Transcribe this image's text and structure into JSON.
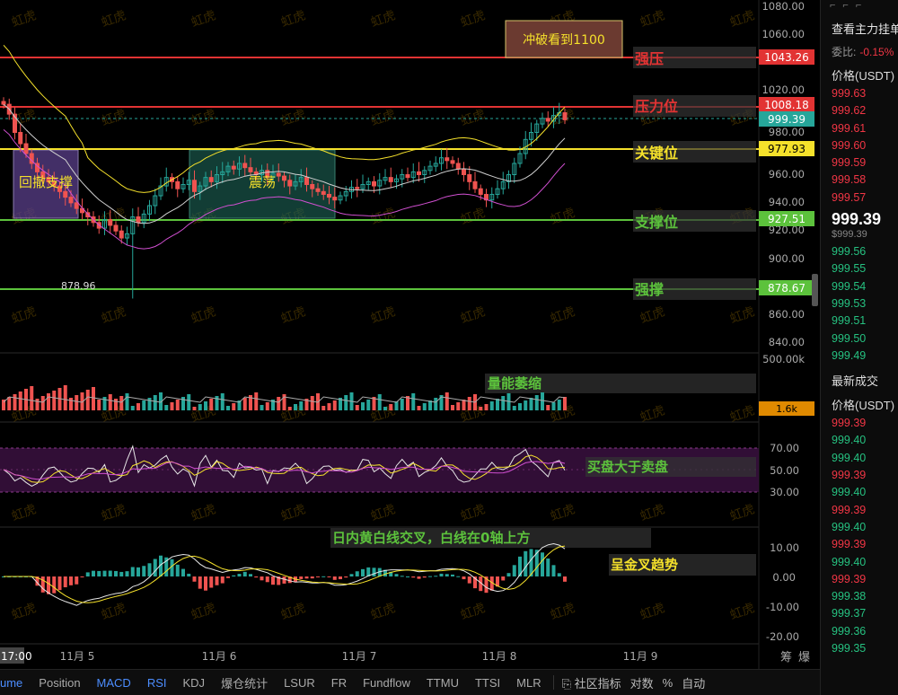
{
  "watermark": "虹虎",
  "price_axis": {
    "ticks": [
      "1080.00",
      "1060.00",
      "1020.00",
      "980.00",
      "960.00",
      "940.00",
      "920.00",
      "900.00",
      "860.00",
      "840.00"
    ],
    "levels": [
      {
        "key": "strong_resist",
        "label": "1043.26",
        "price": 1043.26,
        "color": "#e23333",
        "text_color": "#ffffff"
      },
      {
        "key": "resist",
        "label": "1008.18",
        "price": 1008.18,
        "color": "#e23333",
        "text_color": "#ffffff"
      },
      {
        "key": "current",
        "label": "999.39",
        "price": 999.39,
        "color": "#26a69a",
        "text_color": "#ffffff"
      },
      {
        "key": "key",
        "label": "977.93",
        "price": 977.93,
        "color": "#f5e12b",
        "text_color": "#000000"
      },
      {
        "key": "support",
        "label": "927.51",
        "price": 927.51,
        "color": "#5cc23c",
        "text_color": "#ffffff"
      },
      {
        "key": "strong_support",
        "label": "878.67",
        "price": 878.67,
        "color": "#5cc23c",
        "text_color": "#ffffff"
      }
    ]
  },
  "annotations": {
    "breakout": "冲破看到1100",
    "strong_resist": "强压",
    "resist": "压力位",
    "key": "关键位",
    "support": "支撑位",
    "strong_support": "强撑",
    "pullback": "回撤支撑",
    "range": "震荡",
    "low_label": "878.96",
    "volume_shrink": "量能萎缩",
    "buy_gt_sell": "买盘大于卖盘",
    "macd_cross": "日内黄白线交叉，白线在0轴上方",
    "golden_cross": "呈金叉趋势"
  },
  "volume_axis": {
    "top": "500.00k",
    "value": "1.6k"
  },
  "rsi_axis": {
    "ticks": [
      "70.00",
      "50.00",
      "30.00"
    ]
  },
  "macd_axis": {
    "ticks": [
      "10.00",
      "0.00",
      "-10.00",
      "-20.00"
    ]
  },
  "time_axis": {
    "current": "17:00",
    "labels": [
      "11月 5",
      "11月 6",
      "11月 7",
      "11月 8",
      "11月 9"
    ]
  },
  "tools_right": {
    "a": "筹",
    "b": "爆"
  },
  "tabs": [
    "ume",
    "Position",
    "MACD",
    "RSI",
    "KDJ",
    "爆仓统计",
    "LSUR",
    "FR",
    "Fundflow",
    "TTMU",
    "TTSI",
    "MLR"
  ],
  "active_tabs": [
    "MACD",
    "RSI"
  ],
  "bottom_tools": {
    "indicator": "社区指标",
    "log": "对数",
    "pct": "%",
    "auto": "自动"
  },
  "orderbook": {
    "title": "查看主力挂单",
    "ratio_label": "委比:",
    "ratio_value": "-0.15%",
    "price_header": "价格(USDT)",
    "asks": [
      "999.63",
      "999.62",
      "999.61",
      "999.60",
      "999.59",
      "999.58",
      "999.57"
    ],
    "last_price": "999.39",
    "last_sub": "$999.39",
    "bids": [
      "999.56",
      "999.55",
      "999.54",
      "999.53",
      "999.51",
      "999.50",
      "999.49"
    ],
    "trades_title": "最新成交",
    "trades_header": "价格(USDT)",
    "trades": [
      {
        "p": "999.39",
        "side": "sell"
      },
      {
        "p": "999.40",
        "side": "buy"
      },
      {
        "p": "999.40",
        "side": "buy"
      },
      {
        "p": "999.39",
        "side": "sell"
      },
      {
        "p": "999.40",
        "side": "buy"
      },
      {
        "p": "999.39",
        "side": "sell"
      },
      {
        "p": "999.40",
        "side": "buy"
      },
      {
        "p": "999.39",
        "side": "sell"
      },
      {
        "p": "999.40",
        "side": "buy"
      },
      {
        "p": "999.39",
        "side": "sell"
      },
      {
        "p": "999.38",
        "side": "buy"
      },
      {
        "p": "999.37",
        "side": "buy"
      },
      {
        "p": "999.36",
        "side": "buy"
      },
      {
        "p": "999.35",
        "side": "buy"
      }
    ]
  },
  "colors": {
    "up": "#26a69a",
    "down": "#ef5350",
    "yellow": "#f5e12b",
    "white": "#d8d8d8",
    "pink": "#d04fd0",
    "green": "#5cc23c",
    "red": "#e23333"
  }
}
